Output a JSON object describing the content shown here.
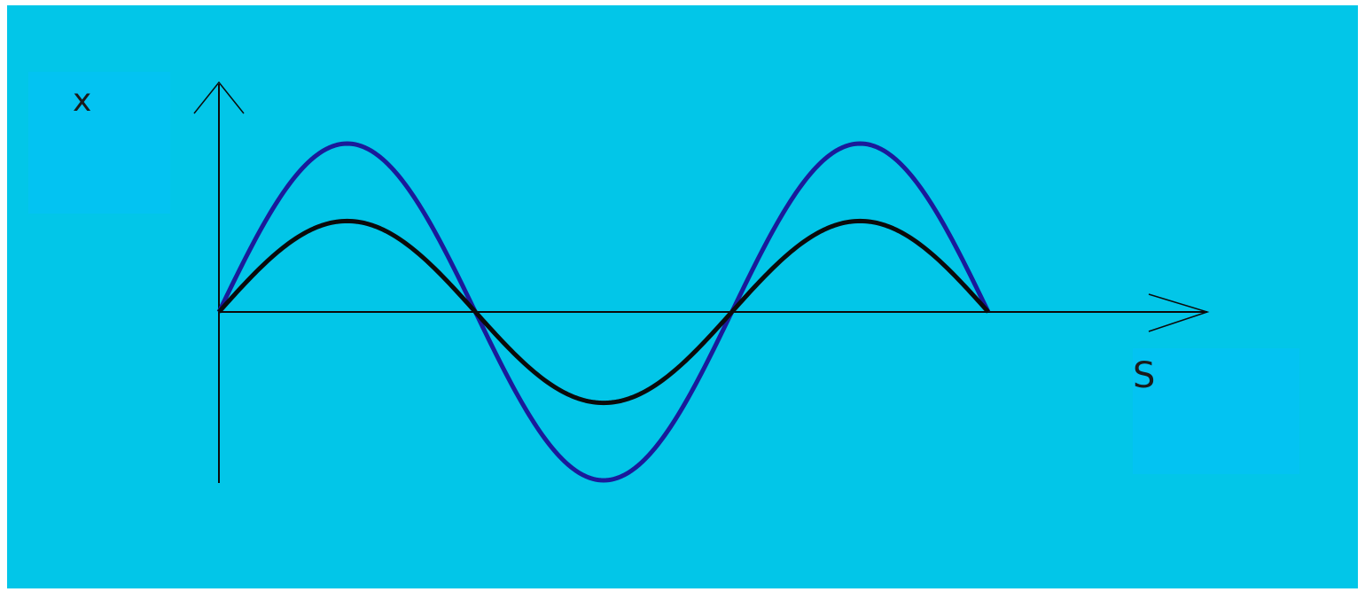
{
  "colors": {
    "background": "#02c6e8",
    "label_box": "#03c3f2",
    "axis": "#0a0a0a",
    "series_large": "#1a1a9a",
    "series_small": "#0a0a0a"
  },
  "chart_data": {
    "type": "line",
    "title": "",
    "xlabel": "S",
    "ylabel": "x",
    "xlim": [
      0,
      1.0
    ],
    "ylim": [
      -1.0,
      1.0
    ],
    "grid": false,
    "legend": "none",
    "series": [
      {
        "color": "#1a1a9a",
        "x": [
          0,
          0.05,
          0.1,
          0.15,
          0.2,
          0.25,
          0.3,
          0.35,
          0.4,
          0.45,
          0.5,
          0.55,
          0.6,
          0.65,
          0.7,
          0.75,
          0.8,
          0.85,
          0.9,
          0.95,
          1.0
        ],
        "values": [
          0,
          0.5,
          0.87,
          1.0,
          0.87,
          0.5,
          0,
          -0.5,
          -0.87,
          -1.0,
          -0.87,
          -0.5,
          0,
          0.5,
          0.87,
          1.0,
          0.87,
          0.5,
          0,
          null,
          null
        ]
      },
      {
        "color": "#0a0a0a",
        "x": [
          0,
          0.05,
          0.1,
          0.15,
          0.2,
          0.25,
          0.3,
          0.35,
          0.4,
          0.45,
          0.5,
          0.55,
          0.6,
          0.65,
          0.7,
          0.75,
          0.8,
          0.85,
          0.9,
          0.95,
          1.0
        ],
        "values": [
          0,
          0.27,
          0.47,
          0.54,
          0.47,
          0.27,
          0,
          -0.27,
          -0.47,
          -0.54,
          -0.47,
          -0.27,
          0,
          0.27,
          0.47,
          0.54,
          0.47,
          0.27,
          0,
          null,
          null
        ]
      }
    ]
  }
}
